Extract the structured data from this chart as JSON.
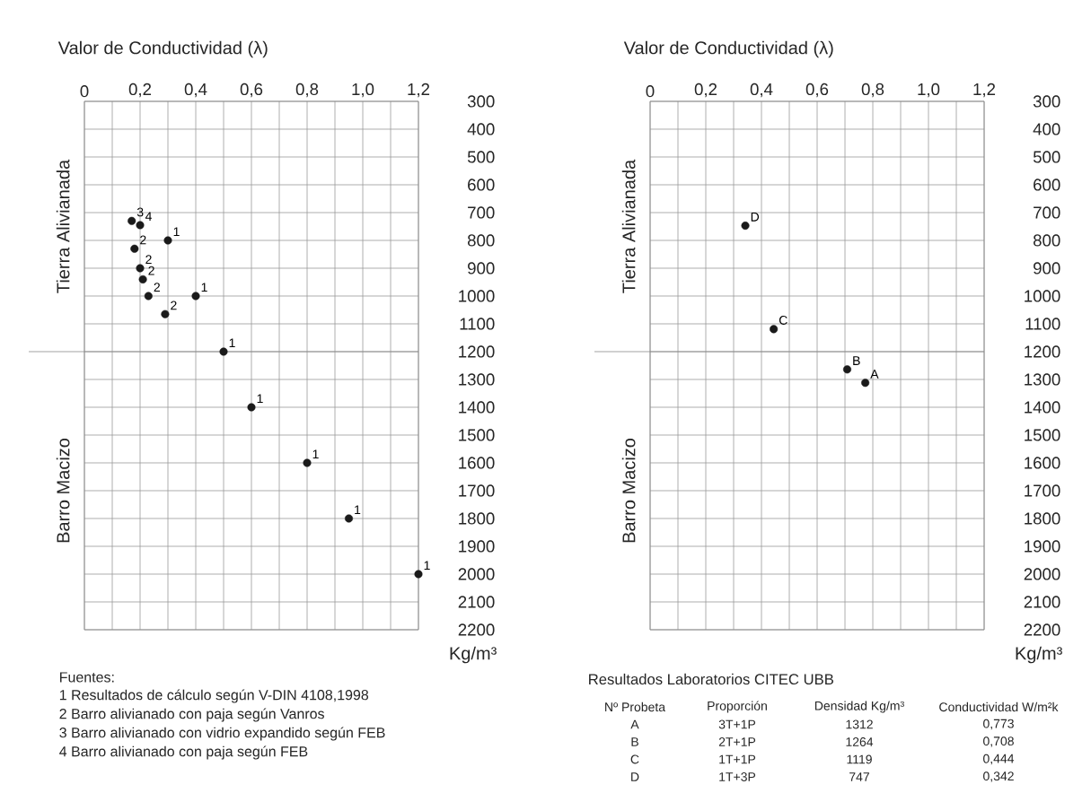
{
  "chart_data": [
    {
      "type": "scatter",
      "xlabel": "Valor de Conductividad (λ)",
      "ylabel": "Kg/m³",
      "color": "#1a1a1a",
      "grid": true,
      "x": [
        0.17,
        0.2,
        0.3,
        0.18,
        0.2,
        0.21,
        0.23,
        0.4,
        0.29,
        0.5,
        0.6,
        0.8,
        0.95,
        1.2
      ],
      "values": [
        730,
        745,
        800,
        830,
        900,
        940,
        1000,
        1000,
        1065,
        1200,
        1400,
        1600,
        1800,
        2000
      ],
      "xlim": [
        0,
        1.2
      ],
      "ylim": [
        2200,
        300
      ],
      "xticks": [
        {
          "value": 0,
          "label": "0"
        },
        {
          "value": 0.1,
          "label": null
        },
        {
          "value": 0.2,
          "label": "0,2"
        },
        {
          "value": 0.3,
          "label": null
        },
        {
          "value": 0.4,
          "label": "0,4"
        },
        {
          "value": 0.5,
          "label": null
        },
        {
          "value": 0.6,
          "label": "0,6"
        },
        {
          "value": 0.7,
          "label": null
        },
        {
          "value": 0.8,
          "label": "0,8"
        },
        {
          "value": 0.9,
          "label": null
        },
        {
          "value": 1.0,
          "label": "1,0"
        },
        {
          "value": 1.1,
          "label": null
        },
        {
          "value": 1.2,
          "label": "1,2"
        }
      ],
      "yticks": [
        300,
        400,
        500,
        600,
        700,
        800,
        900,
        1000,
        1100,
        1200,
        1300,
        1400,
        1500,
        1600,
        1700,
        1800,
        1900,
        2000,
        2100,
        2200
      ],
      "ref_lines": [
        {
          "axis": "y",
          "value": 1200
        }
      ],
      "annotations": [
        "Tierra Alivianada",
        "Barro Macizo",
        {
          "text": "3",
          "x": 0.17,
          "y": 730
        },
        {
          "text": "4",
          "x": 0.2,
          "y": 745
        },
        {
          "text": "1",
          "x": 0.3,
          "y": 800
        },
        {
          "text": "2",
          "x": 0.18,
          "y": 830
        },
        {
          "text": "2",
          "x": 0.2,
          "y": 900
        },
        {
          "text": "2",
          "x": 0.21,
          "y": 940
        },
        {
          "text": "2",
          "x": 0.23,
          "y": 1000
        },
        {
          "text": "1",
          "x": 0.4,
          "y": 1000
        },
        {
          "text": "2",
          "x": 0.29,
          "y": 1065
        },
        {
          "text": "1",
          "x": 0.5,
          "y": 1200
        },
        {
          "text": "1",
          "x": 0.6,
          "y": 1400
        },
        {
          "text": "1",
          "x": 0.8,
          "y": 1600
        },
        {
          "text": "1",
          "x": 0.95,
          "y": 1800
        },
        {
          "text": "1",
          "x": 1.2,
          "y": 2000
        },
        "Fuentes:",
        "1 Resultados de cálculo según V-DIN 4108,1998",
        "2 Barro alivianado con paja según Vanros",
        "3 Barro alivianado con vidrio expandido según FEB",
        "4 Barro alivianado con paja según FEB"
      ]
    },
    {
      "type": "scatter",
      "xlabel": "Valor de Conductividad (λ)",
      "ylabel": "Kg/m³",
      "color": "#1a1a1a",
      "grid": true,
      "x": [
        0.773,
        0.708,
        0.444,
        0.342
      ],
      "values": [
        1312,
        1264,
        1119,
        747
      ],
      "xlim": [
        0,
        1.2
      ],
      "ylim": [
        2200,
        300
      ],
      "xticks": [
        {
          "value": 0,
          "label": "0"
        },
        {
          "value": 0.1,
          "label": null
        },
        {
          "value": 0.2,
          "label": "0,2"
        },
        {
          "value": 0.3,
          "label": null
        },
        {
          "value": 0.4,
          "label": "0,4"
        },
        {
          "value": 0.5,
          "label": null
        },
        {
          "value": 0.6,
          "label": "0,6"
        },
        {
          "value": 0.7,
          "label": null
        },
        {
          "value": 0.8,
          "label": "0,8"
        },
        {
          "value": 0.9,
          "label": null
        },
        {
          "value": 1.0,
          "label": "1,0"
        },
        {
          "value": 1.1,
          "label": null
        },
        {
          "value": 1.2,
          "label": "1,2"
        }
      ],
      "yticks": [
        300,
        400,
        500,
        600,
        700,
        800,
        900,
        1000,
        1100,
        1200,
        1300,
        1400,
        1500,
        1600,
        1700,
        1800,
        1900,
        2000,
        2100,
        2200
      ],
      "ref_lines": [
        {
          "axis": "y",
          "value": 1200
        }
      ],
      "annotations": [
        "Tierra Alivianada",
        "Barro Macizo",
        {
          "text": "A",
          "x": 0.773,
          "y": 1312
        },
        {
          "text": "B",
          "x": 0.708,
          "y": 1264
        },
        {
          "text": "C",
          "x": 0.444,
          "y": 1119
        },
        {
          "text": "D",
          "x": 0.342,
          "y": 747
        },
        "Resultados Laboratorios CITEC UBB",
        "Nº Probeta",
        "Proporción",
        "Densidad Kg/m³",
        "Conductividad W/m²k",
        "A",
        "3T+1P",
        "1312",
        "0,773",
        "B",
        "2T+1P",
        "1264",
        "0,708",
        "C",
        "1T+1P",
        "1119",
        "0,444",
        "D",
        "1T+3P",
        "747",
        "0,342"
      ]
    }
  ]
}
